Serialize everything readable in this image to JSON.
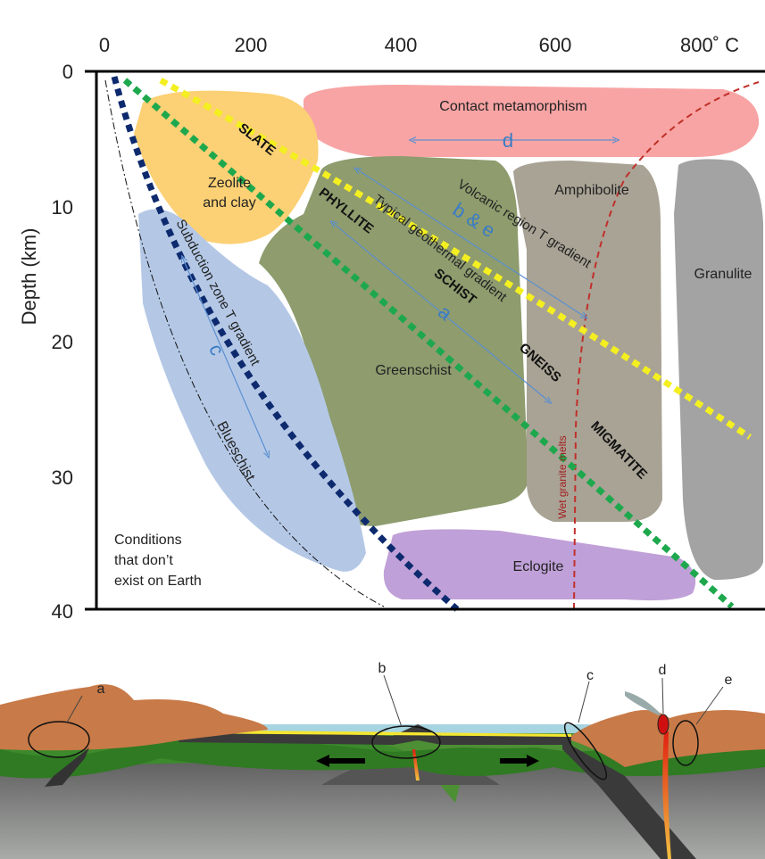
{
  "axis": {
    "x_ticks": [
      "0",
      "200",
      "400",
      "600",
      "800˚ C"
    ],
    "y_ticks": [
      "0",
      "10",
      "20",
      "30",
      "40"
    ],
    "y_label": "Depth (km)"
  },
  "facies": {
    "contact": "Contact metamorphism",
    "zeolite": [
      "Zeolite",
      "and clay"
    ],
    "amphibolite": "Amphibolite",
    "granulite": "Granulite",
    "greenschist": "Greenschist",
    "blueschist": "Blueschist",
    "eclogite": "Eclogite",
    "nonexistent": [
      "Conditions",
      "that don’t",
      "exist on Earth"
    ]
  },
  "rocks": [
    "SLATE",
    "PHYLLITE",
    "SCHIST",
    "GNEISS",
    "MIGMATITE"
  ],
  "gradients": {
    "volcanic": "Volcanic region T gradient",
    "typical": "Typical geothermal gradient",
    "subduction": "Subduction zone T gradient",
    "wet_granite": "Wet granite melts"
  },
  "arrows": {
    "d": "d",
    "be": "b & e",
    "a": "a",
    "c": "c"
  },
  "section_labels": [
    "a",
    "b",
    "c",
    "d",
    "e"
  ]
}
